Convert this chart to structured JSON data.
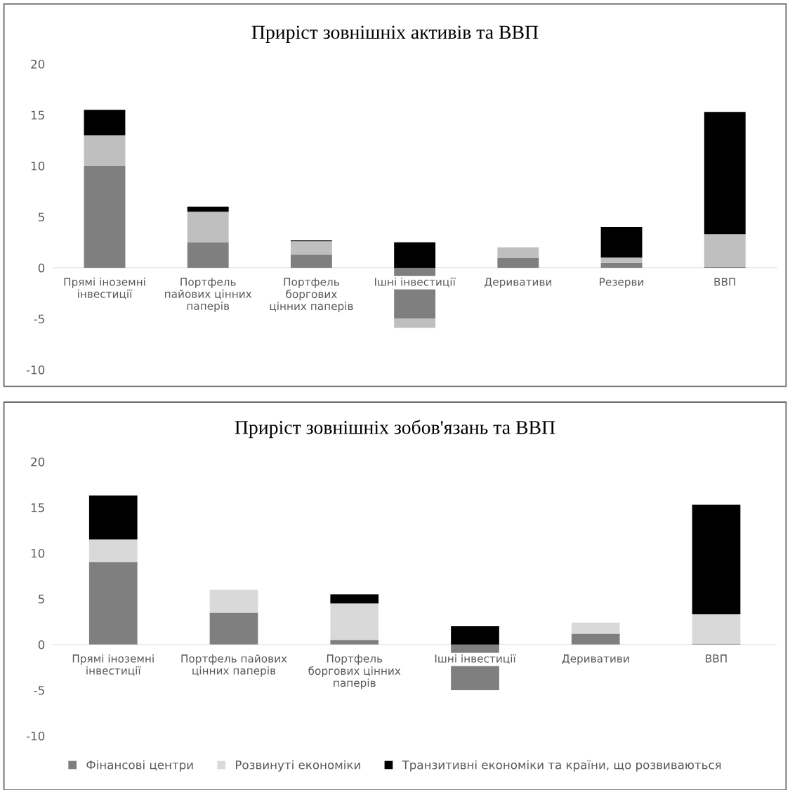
{
  "chart_data": [
    {
      "type": "bar",
      "title": "Приріст зовнішніх активів та ВВП",
      "stacked": true,
      "legend": false,
      "grid": false,
      "categories": [
        "Прямі іноземні інвестиції",
        "Портфель пайових цінних паперів",
        "Портфель боргових цінних паперів",
        "Ішні інвестиції",
        "Деривативи",
        "Резерви",
        "ВВП"
      ],
      "ylim": [
        -10,
        20
      ],
      "yticks": [
        -10,
        -5,
        0,
        5,
        10,
        15,
        20
      ],
      "series": [
        {
          "color": "#7f7f7f",
          "values": [
            10,
            2.5,
            1.3,
            -5,
            1,
            0.5,
            0.1
          ]
        },
        {
          "color": "#bfbfbf",
          "values": [
            3,
            3,
            1.3,
            -0.9,
            1,
            0.5,
            3.2
          ]
        },
        {
          "color": "#000000",
          "values": [
            2.5,
            0.5,
            0.1,
            2.5,
            0,
            3,
            12
          ]
        }
      ]
    },
    {
      "type": "bar",
      "title": "Приріст зовнішніх зобов'язань та ВВП",
      "stacked": true,
      "legend": "bottom",
      "grid": false,
      "categories": [
        "Прямі іноземні інвестиції",
        "Портфель пайових цінних паперів",
        "Портфель боргових цінних паперів",
        "Ішні інвестиції",
        "Деривативи",
        "ВВП"
      ],
      "ylim": [
        -10,
        20
      ],
      "yticks": [
        -10,
        -5,
        0,
        5,
        10,
        15,
        20
      ],
      "series": [
        {
          "name": "Фінансові центри",
          "color": "#7f7f7f",
          "values": [
            9,
            3.5,
            0.5,
            -5,
            1.2,
            0.1
          ]
        },
        {
          "name": "Розвинуті економіки",
          "color": "#d9d9d9",
          "values": [
            2.5,
            2.5,
            4,
            0,
            1.2,
            3.2
          ]
        },
        {
          "name": "Транзитивні економіки та країни, що розвиваються",
          "color": "#000000",
          "values": [
            4.8,
            0,
            1,
            2,
            0,
            12
          ]
        }
      ]
    }
  ]
}
